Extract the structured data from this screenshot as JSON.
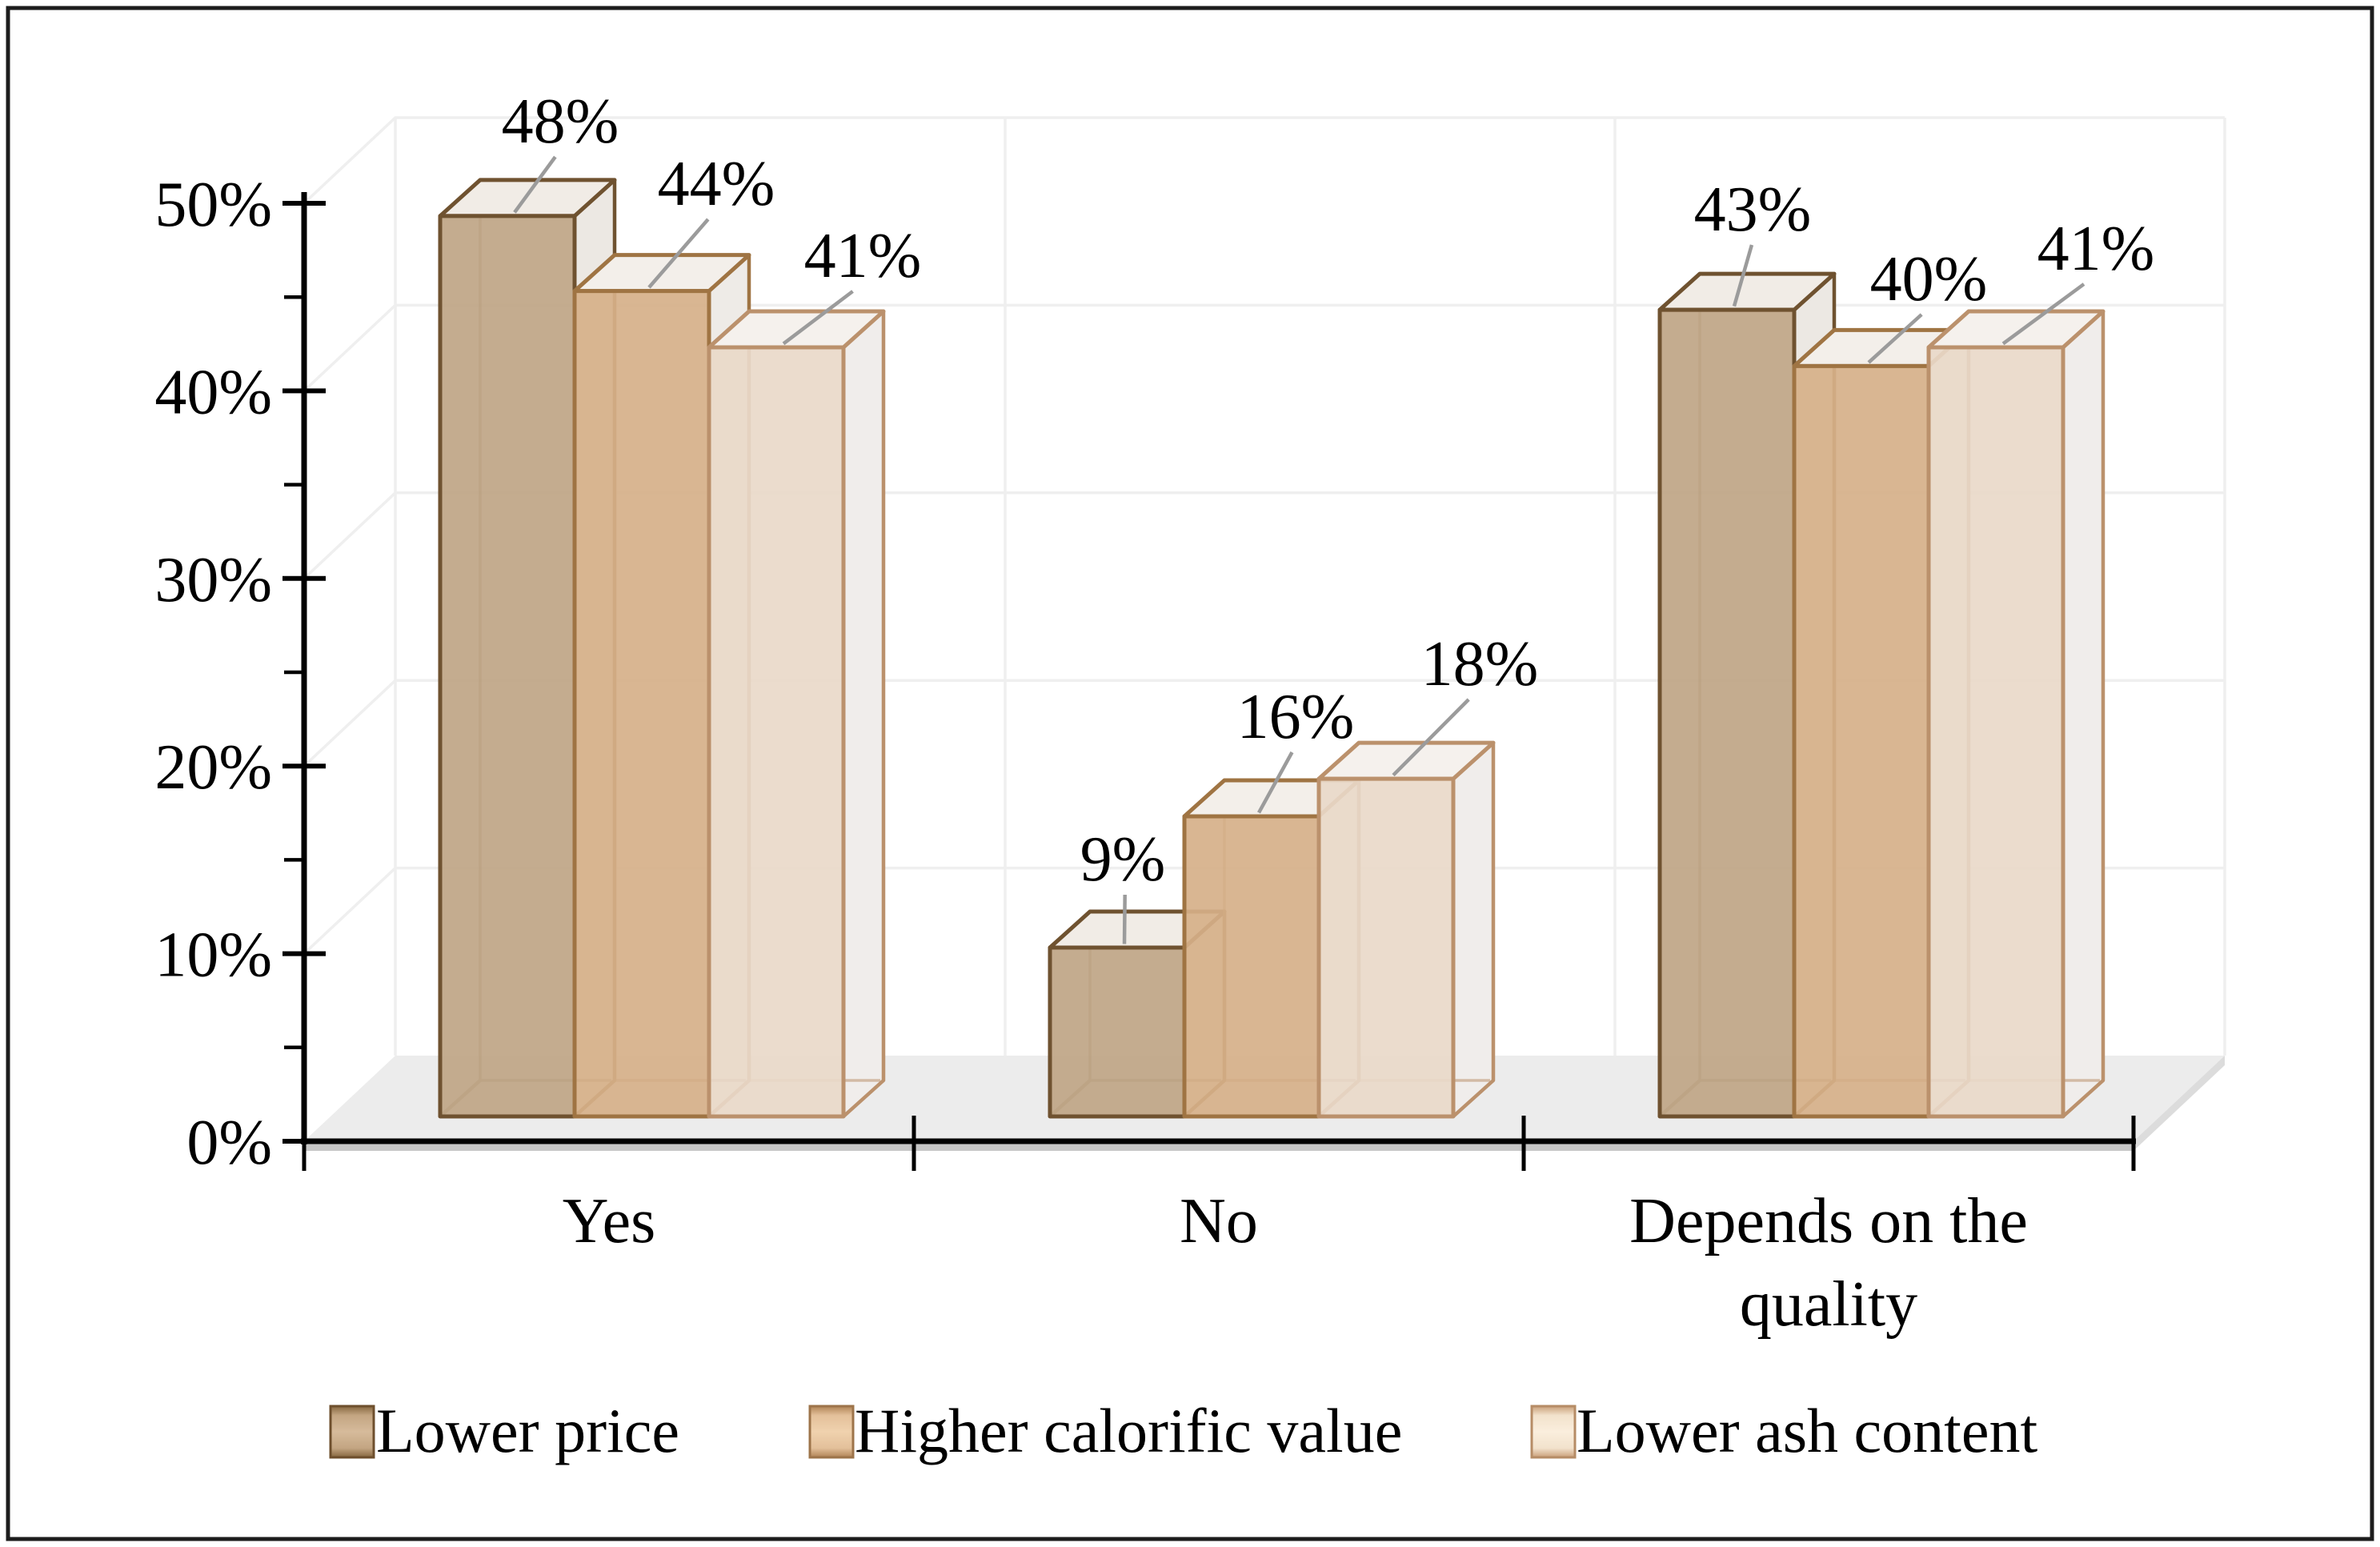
{
  "chart_data": {
    "type": "bar",
    "projection": "3d-column",
    "title": "",
    "xlabel": "",
    "ylabel": "",
    "categories": [
      "Yes",
      "No",
      "Depends on the quality"
    ],
    "category_lines": [
      [
        "Yes"
      ],
      [
        "No"
      ],
      [
        "Depends on the",
        "quality"
      ]
    ],
    "series": [
      {
        "name": "Lower price",
        "values": [
          48,
          9,
          43
        ],
        "data_labels": [
          "48%",
          "9%",
          "43%"
        ]
      },
      {
        "name": "Higher calorific value",
        "values": [
          44,
          16,
          40
        ],
        "data_labels": [
          "44%",
          "16%",
          "40%"
        ]
      },
      {
        "name": "Lower ash content",
        "values": [
          41,
          18,
          41
        ],
        "data_labels": [
          "41%",
          "18%",
          "41%"
        ]
      }
    ],
    "y_ticks": [
      "0%",
      "10%",
      "20%",
      "30%",
      "40%",
      "50%"
    ],
    "y_tick_values": [
      0,
      10,
      20,
      30,
      40,
      50
    ],
    "minor_tick_step": 5,
    "ylim": [
      0,
      50
    ],
    "grid": true,
    "legend_position": "bottom",
    "legend": [
      "Lower price",
      "Higher calorific value",
      "Lower ash content"
    ]
  },
  "colors": {
    "background": "#ffffff",
    "border": "#1c1c1c",
    "axis": "#000000",
    "grid": "#efefef",
    "floor": "#ececec",
    "floor_edge": "#c6c6c6",
    "floor_side": "#dcdcdc",
    "leader_line": "#9b9b9b",
    "text": "#000000",
    "series": [
      {
        "fill": "#bfa585",
        "edge": "#6f5230",
        "top": "#f1ece6",
        "side": "#ece8e3",
        "swatch_dark": "#86673f",
        "swatch_mid": "#c3a582",
        "swatch_light": "#d6bb9b",
        "swatch_border": "#6e4f2d"
      },
      {
        "fill": "#d6b089",
        "edge": "#9f7443",
        "top": "#f3efea",
        "side": "#eeebe7",
        "swatch_dark": "#b08355",
        "swatch_mid": "#e3c09a",
        "swatch_light": "#f0d2ae",
        "swatch_border": "#9d744a"
      },
      {
        "fill": "#e9d9c9",
        "edge": "#bb916c",
        "top": "#f5f1ed",
        "side": "#f0edeb",
        "swatch_dark": "#c99f79",
        "swatch_mid": "#f2e2cc",
        "swatch_light": "#faeedd",
        "swatch_border": "#b68c66"
      }
    ]
  }
}
